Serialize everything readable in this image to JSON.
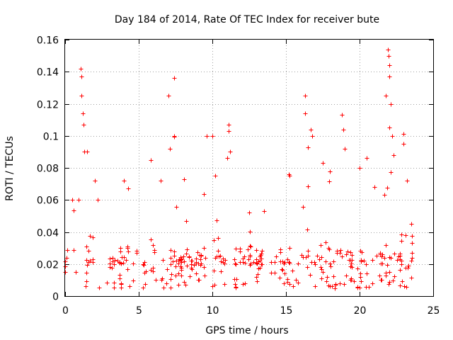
{
  "chart_data": {
    "type": "scatter",
    "title": "Day 184 of 2014, Rate Of TEC Index for receiver bute",
    "xlabel": "GPS time / hours",
    "ylabel": "ROTI / TECUs",
    "xlim": [
      0,
      25
    ],
    "ylim": [
      0,
      0.16
    ],
    "x_ticks": [
      0,
      5,
      10,
      15,
      20,
      25
    ],
    "x_tick_labels": [
      "0",
      "5",
      "10",
      "15",
      "20",
      "25"
    ],
    "y_ticks": [
      0,
      0.02,
      0.04,
      0.06,
      0.08,
      0.1,
      0.12,
      0.14,
      0.16
    ],
    "y_tick_labels": [
      "0",
      "0.02",
      "0.04",
      "0.06",
      "0.08",
      "0.1",
      "0.12",
      "0.14",
      "0.16"
    ],
    "grid": true,
    "marker": "+",
    "color": "#ff0000",
    "series": [
      {
        "name": "ROTI",
        "x_range": [
          0,
          23.7
        ],
        "baseline_range": [
          0.005,
          0.03
        ],
        "peaks": [
          {
            "x": 0.5,
            "y": 0.06
          },
          {
            "x": 0.9,
            "y": 0.06
          },
          {
            "x": 1.05,
            "y": 0.142
          },
          {
            "x": 1.1,
            "y": 0.137
          },
          {
            "x": 1.1,
            "y": 0.125
          },
          {
            "x": 1.2,
            "y": 0.114
          },
          {
            "x": 1.25,
            "y": 0.107
          },
          {
            "x": 1.3,
            "y": 0.09
          },
          {
            "x": 1.5,
            "y": 0.09
          },
          {
            "x": 2.0,
            "y": 0.072
          },
          {
            "x": 2.2,
            "y": 0.06
          },
          {
            "x": 4.0,
            "y": 0.072
          },
          {
            "x": 4.3,
            "y": 0.067
          },
          {
            "x": 5.8,
            "y": 0.085
          },
          {
            "x": 6.5,
            "y": 0.072
          },
          {
            "x": 7.0,
            "y": 0.125
          },
          {
            "x": 7.1,
            "y": 0.092
          },
          {
            "x": 7.4,
            "y": 0.136
          },
          {
            "x": 7.4,
            "y": 0.1
          },
          {
            "x": 8.1,
            "y": 0.073
          },
          {
            "x": 9.6,
            "y": 0.1
          },
          {
            "x": 10.0,
            "y": 0.1
          },
          {
            "x": 10.2,
            "y": 0.075
          },
          {
            "x": 11.0,
            "y": 0.086
          },
          {
            "x": 11.1,
            "y": 0.107
          },
          {
            "x": 11.1,
            "y": 0.103
          },
          {
            "x": 11.2,
            "y": 0.09
          },
          {
            "x": 12.5,
            "y": 0.052
          },
          {
            "x": 13.5,
            "y": 0.053
          },
          {
            "x": 15.2,
            "y": 0.076
          },
          {
            "x": 16.3,
            "y": 0.125
          },
          {
            "x": 16.3,
            "y": 0.114
          },
          {
            "x": 16.5,
            "y": 0.093
          },
          {
            "x": 16.7,
            "y": 0.104
          },
          {
            "x": 16.8,
            "y": 0.1
          },
          {
            "x": 17.5,
            "y": 0.083
          },
          {
            "x": 18.0,
            "y": 0.078
          },
          {
            "x": 18.8,
            "y": 0.113
          },
          {
            "x": 18.9,
            "y": 0.104
          },
          {
            "x": 19.0,
            "y": 0.092
          },
          {
            "x": 20.0,
            "y": 0.08
          },
          {
            "x": 20.5,
            "y": 0.086
          },
          {
            "x": 21.0,
            "y": 0.068
          },
          {
            "x": 21.8,
            "y": 0.125
          },
          {
            "x": 21.9,
            "y": 0.154
          },
          {
            "x": 21.95,
            "y": 0.15
          },
          {
            "x": 22.0,
            "y": 0.144
          },
          {
            "x": 22.0,
            "y": 0.137
          },
          {
            "x": 22.1,
            "y": 0.12
          },
          {
            "x": 22.0,
            "y": 0.105
          },
          {
            "x": 22.2,
            "y": 0.1
          },
          {
            "x": 22.3,
            "y": 0.088
          },
          {
            "x": 23.0,
            "y": 0.101
          },
          {
            "x": 23.0,
            "y": 0.095
          },
          {
            "x": 23.2,
            "y": 0.072
          },
          {
            "x": 23.5,
            "y": 0.045
          }
        ]
      }
    ]
  }
}
